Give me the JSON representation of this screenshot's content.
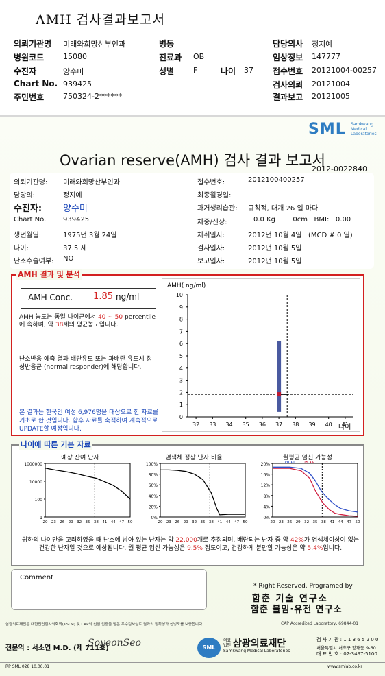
{
  "header": {
    "title": "AMH 검사결과보고서",
    "fields": [
      {
        "key": "의뢰기관명",
        "value": "미래와희망산부인과"
      },
      {
        "key": "병원코드",
        "value": "15080"
      },
      {
        "key": "수진자",
        "value": "양수미"
      },
      {
        "key": "Chart No.",
        "value": "939425"
      },
      {
        "key": "주민번호",
        "value": "750324-2******"
      },
      {
        "key": "병동",
        "value": ""
      },
      {
        "key": "진료과",
        "value": "OB"
      },
      {
        "key": "성별",
        "value": "F"
      },
      {
        "key": "나이",
        "value": "37"
      },
      {
        "key": "담당의사",
        "value": "정지예"
      },
      {
        "key": "임상정보",
        "value": "147777"
      },
      {
        "key": "접수번호",
        "value": "20121004-00257"
      },
      {
        "key": "검사의뢰",
        "value": "20121004"
      },
      {
        "key": "결과보고",
        "value": "20121005"
      }
    ]
  },
  "report": {
    "logo": "SML",
    "logo_sub": [
      "Samkwang",
      "Medical",
      "Laboratories"
    ],
    "title": "Ovarian reserve(AMH) 검사 결과 보고서",
    "report_no": "2012-0022840",
    "left_info": [
      {
        "key": "의뢰기관명:",
        "value": "미래와희망산부인과"
      },
      {
        "key": "담당의:",
        "value": "정지예"
      },
      {
        "key": "수진자:",
        "value": "양수미"
      },
      {
        "key": "Chart No.",
        "value": "939425"
      },
      {
        "key": "생년월일:",
        "value": "1975년 3월 24일"
      },
      {
        "key": "나이:",
        "value": "37.5 세"
      },
      {
        "key": "난소수술여부:",
        "value": "NO"
      }
    ],
    "right_info": [
      {
        "key": "접수번호:",
        "value": "2012100400257"
      },
      {
        "key": "최종월경일:",
        "value": ""
      },
      {
        "key": "과거생리습관:",
        "value": "규칙적, 대개 26 일 마다"
      },
      {
        "key": "체중/신장:",
        "value": "0.0 Kg        0cm   BMI:   0.00"
      },
      {
        "key": "채취일자:",
        "value": "2012년 10월 4일   (MCD # 0 일)"
      },
      {
        "key": "검사일자:",
        "value": "2012년 10월 5일"
      },
      {
        "key": "보고일자:",
        "value": "2012년 10월 5일"
      }
    ],
    "amh_section_label": "AMH 결과 및 분석",
    "amh_conc_label": "AMH Conc.",
    "amh_value": "1.85",
    "amh_unit": "ng/ml",
    "para1_a": "AMH 농도는 동일 나이군에서",
    "para1_range": "40 ~ 50",
    "para1_b": "percentile에 속하며, 약",
    "para1_age": "38",
    "para1_c": "세의 평균농도입니다.",
    "para2": "난소반응 예측 결과 배란유도 또는 과배란 유도시 정상반응군 (normal responder)에 해당합니다.",
    "para3": "본 결과는 한국인 여성 6,976명을 대상으로 한 자료를 기초로 한 것입니다. 향후 자료를 축적하여 계속적으로 UPDATE할 예정입니다.",
    "age_section_label": "나이에 따른 기본 자료",
    "graph1_title": "예상 잔여 난자",
    "graph2_title": "염색체 정상 난자 비율",
    "graph3_title": "월평균 임신 가능성",
    "graph3_legend_a": "- : 임신 -",
    "graph3_legend_b": ": 출산",
    "summary_a": "귀하의 나이만을 고려하였을 때 난소에 남아 있는 난자는 약",
    "summary_eggs": "22,000",
    "summary_b": "개로 추정되며, 배란되는 난자 중 약",
    "summary_pct": "42%",
    "summary_c": "가 염색체이상이 없는 건강한 난자일 것으로 예상됩니다. 월 평균 임신 가능성은",
    "summary_preg": "9.5%",
    "summary_d": "정도이고, 건강하게 분만할 가능성은 약",
    "summary_birth": "5.4%",
    "summary_e": "입니다.",
    "comment_label": "Comment",
    "rights": "* Right Reserved. Programed by",
    "org1": "함춘 기술 연구소",
    "org2": "함춘 불임·유전 연구소",
    "cert_note": "삼광의료재단은 대한진단검사의학회(KSLM) 및 CAP의 신임 인증을 받은 우수검사실로 결과의 정확성과 신빙도를 보증합니다.",
    "cap": "CAP  Accredited  Laboratory,  69844-01",
    "specialist_label": "전문의 : 서소연 M.D. (제 711호)",
    "signature": "SoyeonSeo",
    "foundation": "삼광의료재단",
    "foundation_prefix": "의료법인",
    "foundation_en": "Samkwang Medical Laboratories",
    "phone1": "검 사 기 관 : 1 1 3 6 5 2 0 0",
    "address": "서울특별시 서초구 양재동 9-60",
    "phone2": "대 표 번 호 : 02-3497-5100",
    "form_code": "RP SML 028 10.06.01",
    "website": "www.smlab.co.kr"
  },
  "chart_data": [
    {
      "type": "scatter",
      "title": "",
      "ylabel": "AMH( ng/ml)",
      "xlabel": "나이",
      "x_ticks": [
        32,
        33,
        34,
        35,
        36,
        37,
        38,
        39,
        40,
        41
      ],
      "y_ticks": [
        0,
        1,
        2,
        3,
        4,
        5,
        6,
        7,
        8,
        9,
        10
      ],
      "xlim": [
        31.5,
        41.5
      ],
      "ylim": [
        0,
        10
      ],
      "patient": {
        "age": 37.5,
        "amh": 1.85
      },
      "range_bar": {
        "age": 37,
        "low": 0.4,
        "high": 6.2
      },
      "grid": false
    },
    {
      "type": "line",
      "title": "예상 잔여 난자",
      "x_ticks": [
        20,
        23,
        26,
        29,
        32,
        35,
        38,
        41,
        44,
        47,
        50
      ],
      "y_ticks": [
        "1",
        "100",
        "10000",
        "1000000"
      ],
      "scale": "log",
      "x": [
        20,
        23,
        26,
        29,
        32,
        35,
        38,
        41,
        44,
        47,
        50
      ],
      "values": [
        300000,
        200000,
        140000,
        95000,
        60000,
        35000,
        22000,
        9000,
        3500,
        800,
        100
      ],
      "marker_age": 37.5
    },
    {
      "type": "line",
      "title": "염색체 정상 난자 비율",
      "x_ticks": [
        20,
        23,
        26,
        29,
        32,
        35,
        38,
        41,
        44,
        47,
        50
      ],
      "y_ticks": [
        "0%",
        "20%",
        "40%",
        "60%",
        "80%",
        "100%"
      ],
      "x": [
        20,
        23,
        26,
        29,
        32,
        35,
        38,
        40,
        41,
        44,
        47,
        50
      ],
      "values": [
        88,
        88,
        87,
        85,
        80,
        70,
        45,
        15,
        4,
        5,
        5,
        5
      ],
      "marker_age": 37.5
    },
    {
      "type": "line",
      "title": "월평균 임신 가능성",
      "x_ticks": [
        20,
        23,
        26,
        29,
        32,
        35,
        38,
        41,
        44,
        47,
        50
      ],
      "y_ticks": [
        "0%",
        "4%",
        "8%",
        "12%",
        "16%",
        "20%"
      ],
      "series": [
        {
          "name": "임신",
          "color": "#3050c8",
          "x": [
            20,
            26,
            30,
            33,
            35,
            37,
            38,
            40,
            42,
            44,
            47,
            50
          ],
          "values": [
            20.5,
            20.5,
            20,
            18,
            15,
            11,
            9.5,
            7,
            5,
            3.5,
            2.5,
            2
          ]
        },
        {
          "name": "출산",
          "color": "#d02040",
          "x": [
            20,
            26,
            30,
            33,
            35,
            37,
            38,
            40,
            42,
            44,
            47,
            50
          ],
          "values": [
            20,
            20,
            19,
            16,
            11,
            7,
            5.4,
            3,
            1.5,
            1,
            0.5,
            0.3
          ]
        }
      ],
      "marker_age": 37.5
    }
  ]
}
